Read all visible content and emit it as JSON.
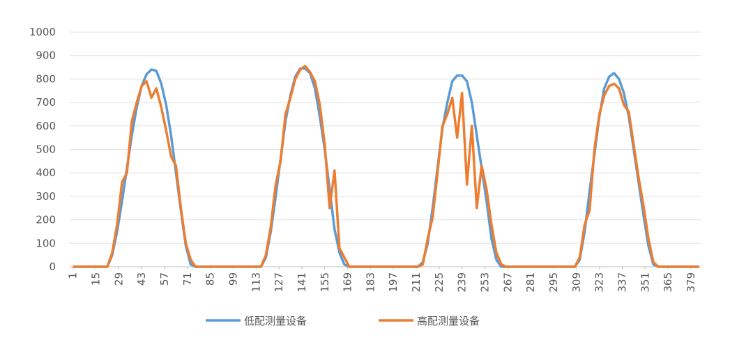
{
  "chart_data": {
    "type": "line",
    "x": [
      1,
      22,
      25,
      28,
      31,
      34,
      37,
      40,
      43,
      46,
      49,
      52,
      55,
      58,
      61,
      64,
      67,
      70,
      73,
      76,
      79,
      116,
      119,
      122,
      125,
      128,
      131,
      134,
      137,
      140,
      143,
      146,
      149,
      152,
      155,
      158,
      161,
      164,
      167,
      170,
      173,
      212,
      215,
      218,
      221,
      224,
      227,
      230,
      233,
      236,
      239,
      242,
      245,
      248,
      251,
      254,
      257,
      260,
      263,
      266,
      269,
      308,
      311,
      314,
      317,
      320,
      323,
      326,
      329,
      332,
      335,
      338,
      341,
      344,
      347,
      350,
      353,
      356,
      359,
      362,
      365,
      384
    ],
    "series": [
      {
        "name": "低配测量设备",
        "color": "#5b9bd5",
        "values": [
          0,
          0,
          50,
          150,
          280,
          420,
          560,
          680,
          770,
          820,
          840,
          835,
          780,
          690,
          560,
          400,
          240,
          90,
          10,
          0,
          0,
          0,
          40,
          150,
          300,
          460,
          620,
          730,
          810,
          845,
          845,
          825,
          760,
          640,
          500,
          330,
          160,
          60,
          10,
          0,
          0,
          0,
          20,
          100,
          250,
          420,
          590,
          700,
          790,
          815,
          815,
          790,
          700,
          560,
          420,
          280,
          120,
          30,
          0,
          0,
          0,
          0,
          30,
          150,
          320,
          480,
          640,
          760,
          810,
          825,
          800,
          740,
          640,
          500,
          360,
          220,
          90,
          10,
          0,
          0,
          0,
          0
        ]
      },
      {
        "name": "高配测量设备",
        "color": "#ed7d31",
        "values": [
          0,
          0,
          60,
          180,
          360,
          400,
          620,
          700,
          770,
          790,
          720,
          760,
          680,
          580,
          470,
          430,
          250,
          100,
          30,
          0,
          0,
          0,
          50,
          170,
          350,
          450,
          650,
          720,
          800,
          840,
          855,
          830,
          790,
          690,
          520,
          250,
          410,
          80,
          40,
          0,
          0,
          0,
          10,
          120,
          210,
          400,
          600,
          650,
          720,
          550,
          740,
          350,
          600,
          250,
          430,
          330,
          180,
          60,
          10,
          0,
          0,
          0,
          40,
          180,
          240,
          500,
          650,
          730,
          770,
          780,
          760,
          690,
          660,
          520,
          380,
          260,
          120,
          20,
          0,
          0,
          0,
          0
        ]
      }
    ],
    "xlim": [
      -1,
      385
    ],
    "xticks": [
      1,
      15,
      29,
      43,
      57,
      71,
      85,
      99,
      113,
      127,
      141,
      155,
      169,
      183,
      197,
      211,
      225,
      239,
      253,
      267,
      281,
      295,
      309,
      323,
      337,
      351,
      365,
      379
    ],
    "ylim": [
      0,
      1000
    ],
    "yticks": [
      0,
      100,
      200,
      300,
      400,
      500,
      600,
      700,
      800,
      900,
      1000
    ],
    "grid": true,
    "legend": "bottom"
  }
}
